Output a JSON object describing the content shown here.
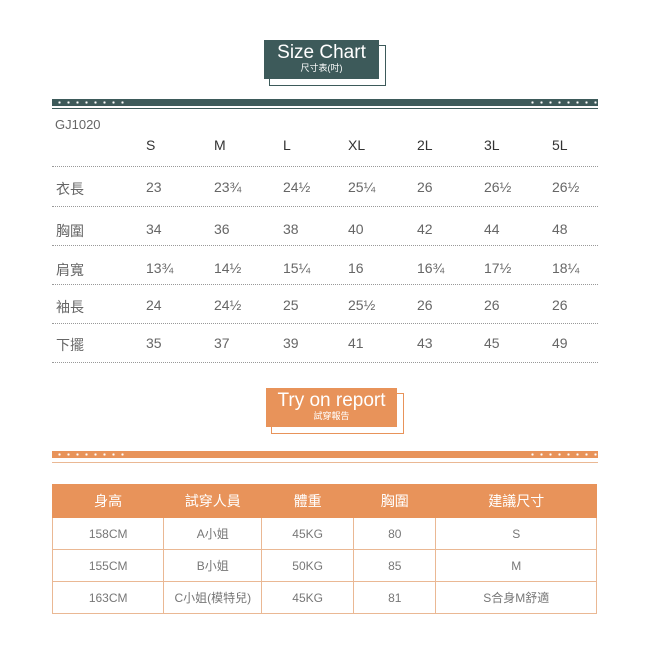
{
  "size_chart": {
    "title": "Size Chart",
    "subtitle": "尺寸表(吋)",
    "accent": "#3d5a5a",
    "product_code": "GJ1020",
    "sizes": [
      "S",
      "M",
      "L",
      "XL",
      "2L",
      "3L",
      "5L"
    ],
    "rows": [
      {
        "label": "衣長",
        "values": [
          "23",
          "23¾",
          "24½",
          "25¼",
          "26",
          "26½",
          "26½"
        ]
      },
      {
        "label": "胸圍",
        "values": [
          "34",
          "36",
          "38",
          "40",
          "42",
          "44",
          "48"
        ]
      },
      {
        "label": "肩寬",
        "values": [
          "13¾",
          "14½",
          "15¼",
          "16",
          "16¾",
          "17½",
          "18¼"
        ]
      },
      {
        "label": "袖長",
        "values": [
          "24",
          "24½",
          "25",
          "25½",
          "26",
          "26",
          "26"
        ]
      },
      {
        "label": "下擺",
        "values": [
          "35",
          "37",
          "39",
          "41",
          "43",
          "45",
          "49"
        ]
      }
    ]
  },
  "try_on": {
    "title": "Try on report",
    "subtitle": "試穿報告",
    "accent": "#e8935a",
    "headers": [
      "身高",
      "試穿人員",
      "體重",
      "胸圍",
      "建議尺寸"
    ],
    "rows": [
      [
        "158CM",
        "A小姐",
        "45KG",
        "80",
        "S"
      ],
      [
        "155CM",
        "B小姐",
        "50KG",
        "85",
        "M"
      ],
      [
        "163CM",
        "C小姐(模特兒)",
        "45KG",
        "81",
        "S合身M舒適"
      ]
    ]
  }
}
